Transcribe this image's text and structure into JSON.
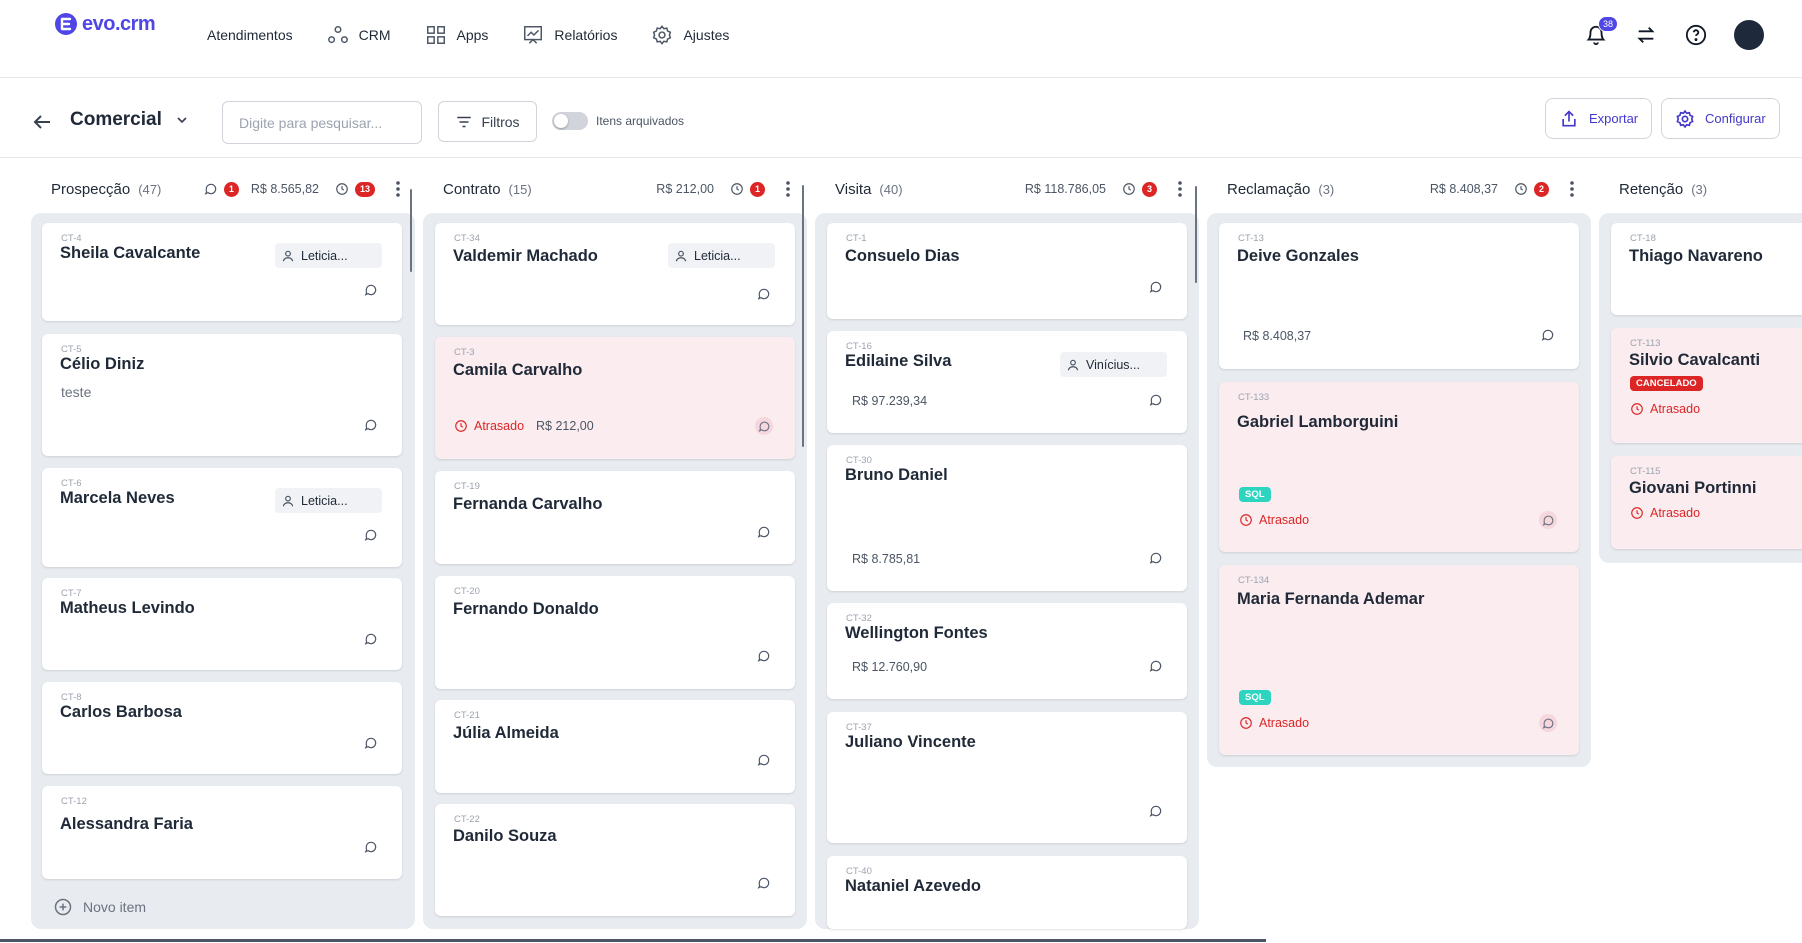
{
  "app": {
    "logo_text": "evo.crm"
  },
  "nav": [
    {
      "label": "Atendimentos"
    },
    {
      "label": "CRM"
    },
    {
      "label": "Apps"
    },
    {
      "label": "Relatórios"
    },
    {
      "label": "Ajustes"
    }
  ],
  "notifications": {
    "count": "38"
  },
  "toolbar": {
    "pipeline_title": "Comercial",
    "search_placeholder": "Digite para pesquisar...",
    "filters_label": "Filtros",
    "archived_label": "Itens arquivados",
    "export_label": "Exportar",
    "configure_label": "Configurar"
  },
  "columns": [
    {
      "name": "Prospecção",
      "count": "(47)",
      "comments_badge": "1",
      "total": "R$  8.565,82",
      "late_badge": "13",
      "new_item_label": "Novo item",
      "cards": [
        {
          "code": "CT-4",
          "name": "Sheila Cavalcante",
          "owner": "Leticia..."
        },
        {
          "code": "CT-5",
          "name": "Célio Diniz",
          "desc": "teste"
        },
        {
          "code": "CT-6",
          "name": "Marcela Neves",
          "owner": "Leticia..."
        },
        {
          "code": "CT-7",
          "name": "Matheus Levindo"
        },
        {
          "code": "CT-8",
          "name": "Carlos Barbosa"
        },
        {
          "code": "CT-12",
          "name": "Alessandra Faria"
        }
      ]
    },
    {
      "name": "Contrato",
      "count": "(15)",
      "total": "R$  212,00",
      "late_badge": "1",
      "cards": [
        {
          "code": "CT-34",
          "name": "Valdemir Machado",
          "owner": "Leticia..."
        },
        {
          "code": "CT-3",
          "name": "Camila Carvalho",
          "late": "Atrasado",
          "value": "R$ 212,00"
        },
        {
          "code": "CT-19",
          "name": "Fernanda Carvalho"
        },
        {
          "code": "CT-20",
          "name": "Fernando Donaldo"
        },
        {
          "code": "CT-21",
          "name": "Júlia Almeida"
        },
        {
          "code": "CT-22",
          "name": "Danilo Souza"
        }
      ]
    },
    {
      "name": "Visita",
      "count": "(40)",
      "total": "R$  118.786,05",
      "late_badge": "3",
      "cards": [
        {
          "code": "CT-1",
          "name": "Consuelo Dias"
        },
        {
          "code": "CT-16",
          "name": "Edilaine Silva",
          "owner": "Vinícius...",
          "value": "R$ 97.239,34"
        },
        {
          "code": "CT-30",
          "name": "Bruno Daniel",
          "value": "R$ 8.785,81"
        },
        {
          "code": "CT-32",
          "name": "Wellington Fontes",
          "value": "R$ 12.760,90"
        },
        {
          "code": "CT-37",
          "name": "Juliano Vincente"
        },
        {
          "code": "CT-40",
          "name": "Nataniel Azevedo"
        }
      ]
    },
    {
      "name": "Reclamação",
      "count": "(3)",
      "total": "R$  8.408,37",
      "late_badge": "2",
      "cards": [
        {
          "code": "CT-13",
          "name": "Deive Gonzales",
          "value": "R$ 8.408,37"
        },
        {
          "code": "CT-133",
          "name": "Gabriel Lamborguini",
          "tag": "SQL",
          "late": "Atrasado"
        },
        {
          "code": "CT-134",
          "name": "Maria Fernanda Ademar",
          "tag": "SQL",
          "late": "Atrasado"
        }
      ]
    },
    {
      "name": "Retenção",
      "count": "(3)",
      "cards": [
        {
          "code": "CT-18",
          "name": "Thiago Navareno"
        },
        {
          "code": "CT-113",
          "name": "Silvio Cavalcanti",
          "tag": "CANCELADO",
          "late": "Atrasado"
        },
        {
          "code": "CT-115",
          "name": "Giovani Portinni",
          "late": "Atrasado"
        }
      ]
    }
  ],
  "colors": {
    "accent": "#4f46e5",
    "late_bg": "#fbecef",
    "danger": "#dc2626",
    "sql_tag": "#2dd4bf",
    "column_bg": "#e8ebf0"
  }
}
